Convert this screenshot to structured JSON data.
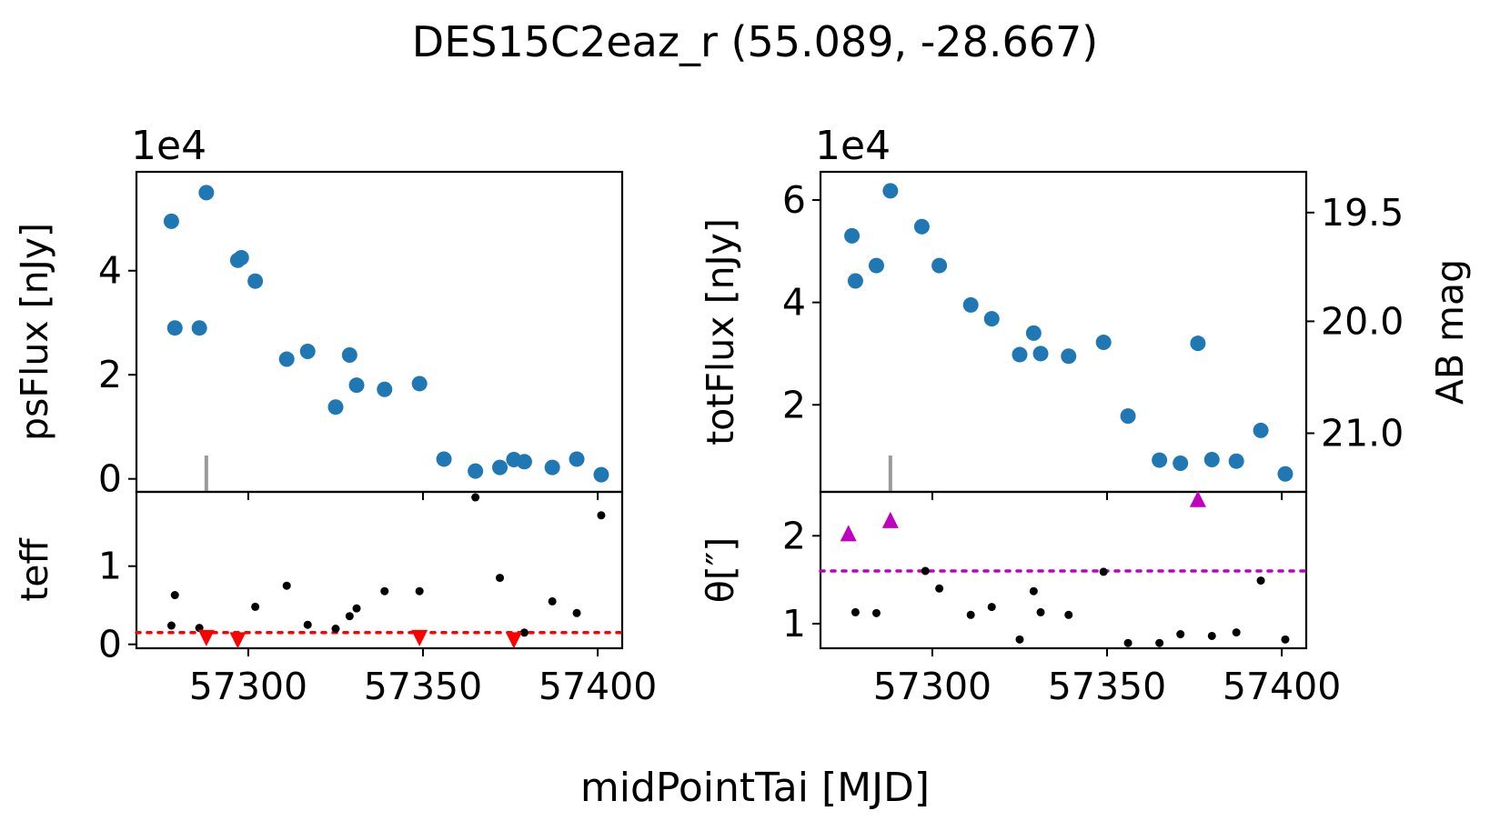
{
  "title": "DES15C2eaz_r (55.089, -28.667)",
  "xlabel": "midPointTai [MJD]",
  "colors": {
    "flux": "#1f77b4",
    "aux": "#000000",
    "limit_red": "#ff0000",
    "limit_magenta": "#bf00bf",
    "marker_gray": "#999999"
  },
  "chart_data": [
    {
      "id": "psflux",
      "type": "scatter",
      "ylabel": "psFlux [nJy]",
      "offset_text": "1e4",
      "xlim": [
        57268,
        57407
      ],
      "ylim": [
        -0.25,
        5.9
      ],
      "xticks": [
        {
          "v": 57300,
          "label": "57300"
        },
        {
          "v": 57350,
          "label": "57350"
        },
        {
          "v": 57400,
          "label": "57400"
        }
      ],
      "yticks": [
        {
          "v": 0,
          "label": "0"
        },
        {
          "v": 2,
          "label": "2"
        },
        {
          "v": 4,
          "label": "4"
        }
      ],
      "marker_x": 57288,
      "x": [
        57278,
        57279,
        57286,
        57288,
        57297,
        57298,
        57302,
        57311,
        57317,
        57325,
        57329,
        57331,
        57339,
        57349,
        57356,
        57365,
        57372,
        57376,
        57379,
        57387,
        57394,
        57401
      ],
      "y": [
        4.95,
        2.9,
        2.9,
        5.5,
        4.2,
        4.25,
        3.8,
        2.3,
        2.45,
        1.38,
        2.38,
        1.8,
        1.72,
        1.83,
        0.38,
        0.15,
        0.22,
        0.37,
        0.33,
        0.22,
        0.38,
        0.08
      ]
    },
    {
      "id": "teff",
      "type": "scatter",
      "ylabel": "teff",
      "xlim": [
        57268,
        57407
      ],
      "ylim": [
        -0.05,
        1.95
      ],
      "yticks": [
        {
          "v": 0,
          "label": "0"
        },
        {
          "v": 1,
          "label": "1"
        }
      ],
      "threshold": 0.15,
      "x": [
        57278,
        57279,
        57286,
        57302,
        57311,
        57317,
        57325,
        57329,
        57331,
        57339,
        57349,
        57365,
        57372,
        57379,
        57387,
        57394,
        57401
      ],
      "y": [
        0.24,
        0.63,
        0.21,
        0.48,
        0.75,
        0.25,
        0.2,
        0.36,
        0.46,
        0.68,
        0.68,
        1.88,
        0.85,
        0.15,
        0.55,
        0.4,
        1.65
      ],
      "limits_x": [
        57288,
        57297,
        57349,
        57376
      ],
      "limits_y": [
        0.08,
        0.05,
        0.08,
        0.05
      ]
    },
    {
      "id": "totflux",
      "type": "scatter",
      "ylabel": "totFlux [nJy]",
      "ylabel2": "AB mag",
      "offset_text": "1e4",
      "xlim": [
        57268,
        57407
      ],
      "ylim": [
        0.3,
        6.55
      ],
      "xticks": [
        {
          "v": 57300,
          "label": "57300"
        },
        {
          "v": 57350,
          "label": "57350"
        },
        {
          "v": 57400,
          "label": "57400"
        }
      ],
      "yticks": [
        {
          "v": 2,
          "label": "2"
        },
        {
          "v": 4,
          "label": "4"
        },
        {
          "v": 6,
          "label": "6"
        }
      ],
      "mag_ticks": [
        {
          "mag": 19.5,
          "label": "19.5"
        },
        {
          "mag": 20.0,
          "label": "20.0"
        },
        {
          "mag": 21.0,
          "label": "21.0"
        }
      ],
      "marker_x": 57288,
      "x": [
        57277,
        57278,
        57284,
        57288,
        57297,
        57302,
        57311,
        57317,
        57325,
        57329,
        57331,
        57339,
        57349,
        57356,
        57365,
        57371,
        57376,
        57380,
        57387,
        57394,
        57401
      ],
      "y": [
        5.3,
        4.42,
        4.72,
        6.18,
        5.48,
        4.72,
        3.95,
        3.68,
        2.98,
        3.4,
        3.0,
        2.95,
        3.22,
        1.78,
        0.92,
        0.86,
        3.2,
        0.93,
        0.9,
        1.5,
        0.65
      ]
    },
    {
      "id": "theta",
      "type": "scatter",
      "ylabel": "θ[″]",
      "xlim": [
        57268,
        57407
      ],
      "ylim": [
        0.72,
        2.5
      ],
      "yticks": [
        {
          "v": 1,
          "label": "1"
        },
        {
          "v": 2,
          "label": "2"
        }
      ],
      "threshold": 1.6,
      "x": [
        57278,
        57284,
        57298,
        57302,
        57311,
        57317,
        57325,
        57329,
        57331,
        57339,
        57349,
        57356,
        57365,
        57371,
        57380,
        57387,
        57394,
        57401
      ],
      "y": [
        1.13,
        1.12,
        1.6,
        1.4,
        1.1,
        1.19,
        0.82,
        1.37,
        1.13,
        1.1,
        1.59,
        0.78,
        0.78,
        0.88,
        0.86,
        0.9,
        1.49,
        0.82
      ],
      "limits_x": [
        57276,
        57288,
        57376
      ],
      "limits_y": [
        2.03,
        2.18,
        2.42
      ]
    }
  ]
}
